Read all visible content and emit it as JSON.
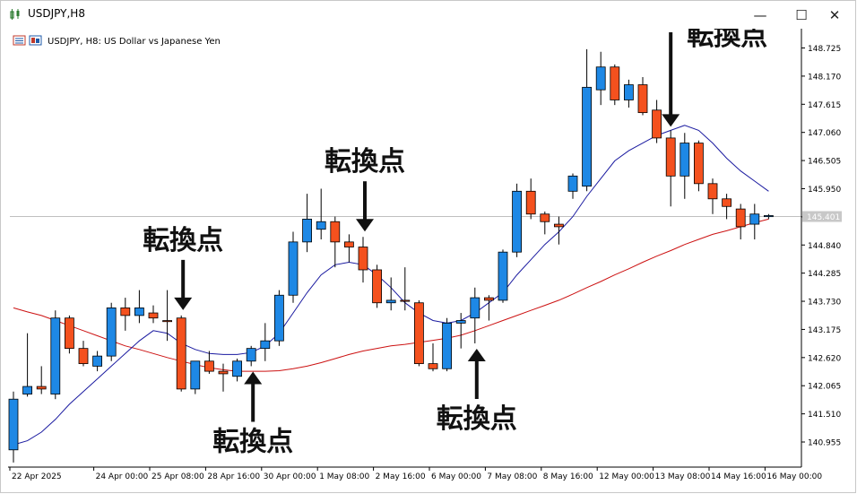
{
  "window": {
    "title": "USDJPY,H8",
    "minimize_label": "—",
    "maximize_label": "☐",
    "close_label": "✕"
  },
  "chart_header": {
    "text": "USDJPY, H8:  US Dollar vs Japanese Yen"
  },
  "colors": {
    "bull": "#1e88e5",
    "bear": "#f4511e",
    "ma_fast": "#1a1aa0",
    "ma_slow": "#cc1111",
    "axis": "#000000",
    "current_price_line": "#c0c0c0"
  },
  "chart_data": {
    "type": "candlestick",
    "title": "USDJPY, H8:  US Dollar vs Japanese Yen",
    "ylim": [
      140.46,
      149.07
    ],
    "y_ticks": [
      "148.725",
      "148.170",
      "147.615",
      "147.060",
      "146.505",
      "145.950",
      "145.395",
      "144.840",
      "144.285",
      "143.730",
      "143.175",
      "142.620",
      "142.065",
      "141.510",
      "140.955"
    ],
    "x_labels": [
      {
        "i": 0,
        "label": "22 Apr 2025"
      },
      {
        "i": 6,
        "label": "24 Apr 00:00"
      },
      {
        "i": 10,
        "label": "25 Apr 08:00"
      },
      {
        "i": 14,
        "label": "28 Apr 16:00"
      },
      {
        "i": 18,
        "label": "30 Apr 00:00"
      },
      {
        "i": 22,
        "label": "1 May 08:00"
      },
      {
        "i": 26,
        "label": "2 May 16:00"
      },
      {
        "i": 30,
        "label": "6 May 00:00"
      },
      {
        "i": 34,
        "label": "7 May 08:00"
      },
      {
        "i": 38,
        "label": "8 May 16:00"
      },
      {
        "i": 42,
        "label": "12 May 00:00"
      },
      {
        "i": 46,
        "label": "13 May 08:00"
      },
      {
        "i": 50,
        "label": "14 May 16:00"
      },
      {
        "i": 54,
        "label": "16 May 00:00"
      }
    ],
    "current_price": "145.401",
    "candles": [
      {
        "o": 140.8,
        "h": 141.95,
        "l": 140.55,
        "c": 141.8
      },
      {
        "o": 141.9,
        "h": 143.1,
        "l": 141.85,
        "c": 142.05
      },
      {
        "o": 142.05,
        "h": 142.45,
        "l": 141.9,
        "c": 142.0
      },
      {
        "o": 141.9,
        "h": 143.55,
        "l": 141.8,
        "c": 143.4
      },
      {
        "o": 143.4,
        "h": 143.45,
        "l": 142.7,
        "c": 142.8
      },
      {
        "o": 142.8,
        "h": 142.95,
        "l": 142.45,
        "c": 142.5
      },
      {
        "o": 142.45,
        "h": 142.75,
        "l": 142.35,
        "c": 142.65
      },
      {
        "o": 142.65,
        "h": 143.7,
        "l": 142.55,
        "c": 143.6
      },
      {
        "o": 143.6,
        "h": 143.8,
        "l": 143.15,
        "c": 143.45
      },
      {
        "o": 143.45,
        "h": 143.95,
        "l": 143.3,
        "c": 143.6
      },
      {
        "o": 143.5,
        "h": 143.65,
        "l": 143.3,
        "c": 143.4
      },
      {
        "o": 143.35,
        "h": 143.95,
        "l": 142.95,
        "c": 143.33
      },
      {
        "o": 143.4,
        "h": 143.45,
        "l": 141.95,
        "c": 142.0
      },
      {
        "o": 142.0,
        "h": 142.55,
        "l": 141.9,
        "c": 142.55
      },
      {
        "o": 142.55,
        "h": 142.75,
        "l": 142.3,
        "c": 142.35
      },
      {
        "o": 142.35,
        "h": 142.5,
        "l": 141.95,
        "c": 142.3
      },
      {
        "o": 142.25,
        "h": 142.6,
        "l": 142.15,
        "c": 142.55
      },
      {
        "o": 142.55,
        "h": 142.85,
        "l": 142.45,
        "c": 142.8
      },
      {
        "o": 142.8,
        "h": 143.3,
        "l": 142.55,
        "c": 142.95
      },
      {
        "o": 142.95,
        "h": 143.95,
        "l": 142.85,
        "c": 143.85
      },
      {
        "o": 143.85,
        "h": 145.1,
        "l": 143.7,
        "c": 144.9
      },
      {
        "o": 144.9,
        "h": 145.85,
        "l": 144.7,
        "c": 145.35
      },
      {
        "o": 145.15,
        "h": 145.95,
        "l": 144.95,
        "c": 145.3
      },
      {
        "o": 145.3,
        "h": 145.4,
        "l": 144.4,
        "c": 144.9
      },
      {
        "o": 144.9,
        "h": 145.05,
        "l": 144.5,
        "c": 144.8
      },
      {
        "o": 144.8,
        "h": 145.0,
        "l": 144.1,
        "c": 144.35
      },
      {
        "o": 144.35,
        "h": 144.45,
        "l": 143.6,
        "c": 143.7
      },
      {
        "o": 143.7,
        "h": 144.2,
        "l": 143.55,
        "c": 143.75
      },
      {
        "o": 143.75,
        "h": 144.4,
        "l": 143.55,
        "c": 143.73
      },
      {
        "o": 143.7,
        "h": 143.75,
        "l": 142.45,
        "c": 142.5
      },
      {
        "o": 142.5,
        "h": 142.9,
        "l": 142.35,
        "c": 142.4
      },
      {
        "o": 142.4,
        "h": 143.4,
        "l": 142.35,
        "c": 143.3
      },
      {
        "o": 143.3,
        "h": 143.5,
        "l": 142.8,
        "c": 143.35
      },
      {
        "o": 143.4,
        "h": 144.0,
        "l": 142.9,
        "c": 143.8
      },
      {
        "o": 143.8,
        "h": 143.85,
        "l": 143.35,
        "c": 143.75
      },
      {
        "o": 143.75,
        "h": 144.75,
        "l": 143.7,
        "c": 144.7
      },
      {
        "o": 144.7,
        "h": 146.05,
        "l": 144.6,
        "c": 145.9
      },
      {
        "o": 145.9,
        "h": 146.15,
        "l": 145.35,
        "c": 145.45
      },
      {
        "o": 145.45,
        "h": 145.5,
        "l": 145.05,
        "c": 145.3
      },
      {
        "o": 145.25,
        "h": 145.4,
        "l": 144.85,
        "c": 145.2
      },
      {
        "o": 145.9,
        "h": 146.25,
        "l": 145.75,
        "c": 146.2
      },
      {
        "o": 146.0,
        "h": 148.7,
        "l": 145.9,
        "c": 147.95
      },
      {
        "o": 147.9,
        "h": 148.65,
        "l": 147.6,
        "c": 148.35
      },
      {
        "o": 148.35,
        "h": 148.4,
        "l": 147.6,
        "c": 147.7
      },
      {
        "o": 147.7,
        "h": 148.1,
        "l": 147.55,
        "c": 148.0
      },
      {
        "o": 148.0,
        "h": 148.15,
        "l": 147.4,
        "c": 147.45
      },
      {
        "o": 147.5,
        "h": 147.7,
        "l": 146.85,
        "c": 146.95
      },
      {
        "o": 146.95,
        "h": 147.1,
        "l": 145.6,
        "c": 146.2
      },
      {
        "o": 146.2,
        "h": 147.05,
        "l": 145.75,
        "c": 146.85
      },
      {
        "o": 146.85,
        "h": 146.9,
        "l": 145.9,
        "c": 146.05
      },
      {
        "o": 146.05,
        "h": 146.15,
        "l": 145.45,
        "c": 145.75
      },
      {
        "o": 145.75,
        "h": 145.85,
        "l": 145.35,
        "c": 145.6
      },
      {
        "o": 145.55,
        "h": 145.65,
        "l": 144.95,
        "c": 145.2
      },
      {
        "o": 145.25,
        "h": 145.65,
        "l": 144.95,
        "c": 145.45
      },
      {
        "o": 145.4,
        "h": 145.45,
        "l": 145.35,
        "c": 145.42
      }
    ],
    "ma_fast": [
      140.9,
      140.98,
      141.15,
      141.4,
      141.7,
      141.95,
      142.2,
      142.45,
      142.7,
      142.95,
      143.15,
      143.1,
      142.9,
      142.78,
      142.7,
      142.68,
      142.68,
      142.72,
      142.85,
      143.1,
      143.5,
      143.9,
      144.25,
      144.45,
      144.5,
      144.45,
      144.25,
      144.0,
      143.7,
      143.5,
      143.35,
      143.3,
      143.35,
      143.5,
      143.7,
      143.9,
      144.25,
      144.55,
      144.85,
      145.1,
      145.4,
      145.8,
      146.15,
      146.5,
      146.7,
      146.85,
      147.0,
      147.1,
      147.2,
      147.1,
      146.85,
      146.55,
      146.3,
      146.1,
      145.9
    ],
    "ma_slow": [
      143.6,
      143.52,
      143.45,
      143.35,
      143.25,
      143.15,
      143.05,
      142.95,
      142.85,
      142.78,
      142.7,
      142.62,
      142.55,
      142.48,
      142.42,
      142.38,
      142.35,
      142.35,
      142.35,
      142.36,
      142.4,
      142.45,
      142.52,
      142.6,
      142.68,
      142.75,
      142.8,
      142.85,
      142.88,
      142.92,
      142.96,
      143.0,
      143.06,
      143.15,
      143.25,
      143.35,
      143.45,
      143.55,
      143.65,
      143.75,
      143.87,
      144.0,
      144.12,
      144.25,
      144.37,
      144.5,
      144.62,
      144.73,
      144.85,
      144.95,
      145.05,
      145.12,
      145.2,
      145.28,
      145.35
    ],
    "annotations": [
      {
        "text": "転換点",
        "arrow": "down",
        "candle": 12,
        "label_side": "above"
      },
      {
        "text": "転換点",
        "arrow": "up",
        "candle": 17,
        "label_side": "below"
      },
      {
        "text": "転換点",
        "arrow": "down",
        "candle": 25,
        "label_side": "above"
      },
      {
        "text": "転換点",
        "arrow": "up",
        "candle": 33,
        "label_side": "below"
      },
      {
        "text": "転換点",
        "arrow": "down",
        "candle": 47,
        "label_side": "right"
      }
    ]
  }
}
